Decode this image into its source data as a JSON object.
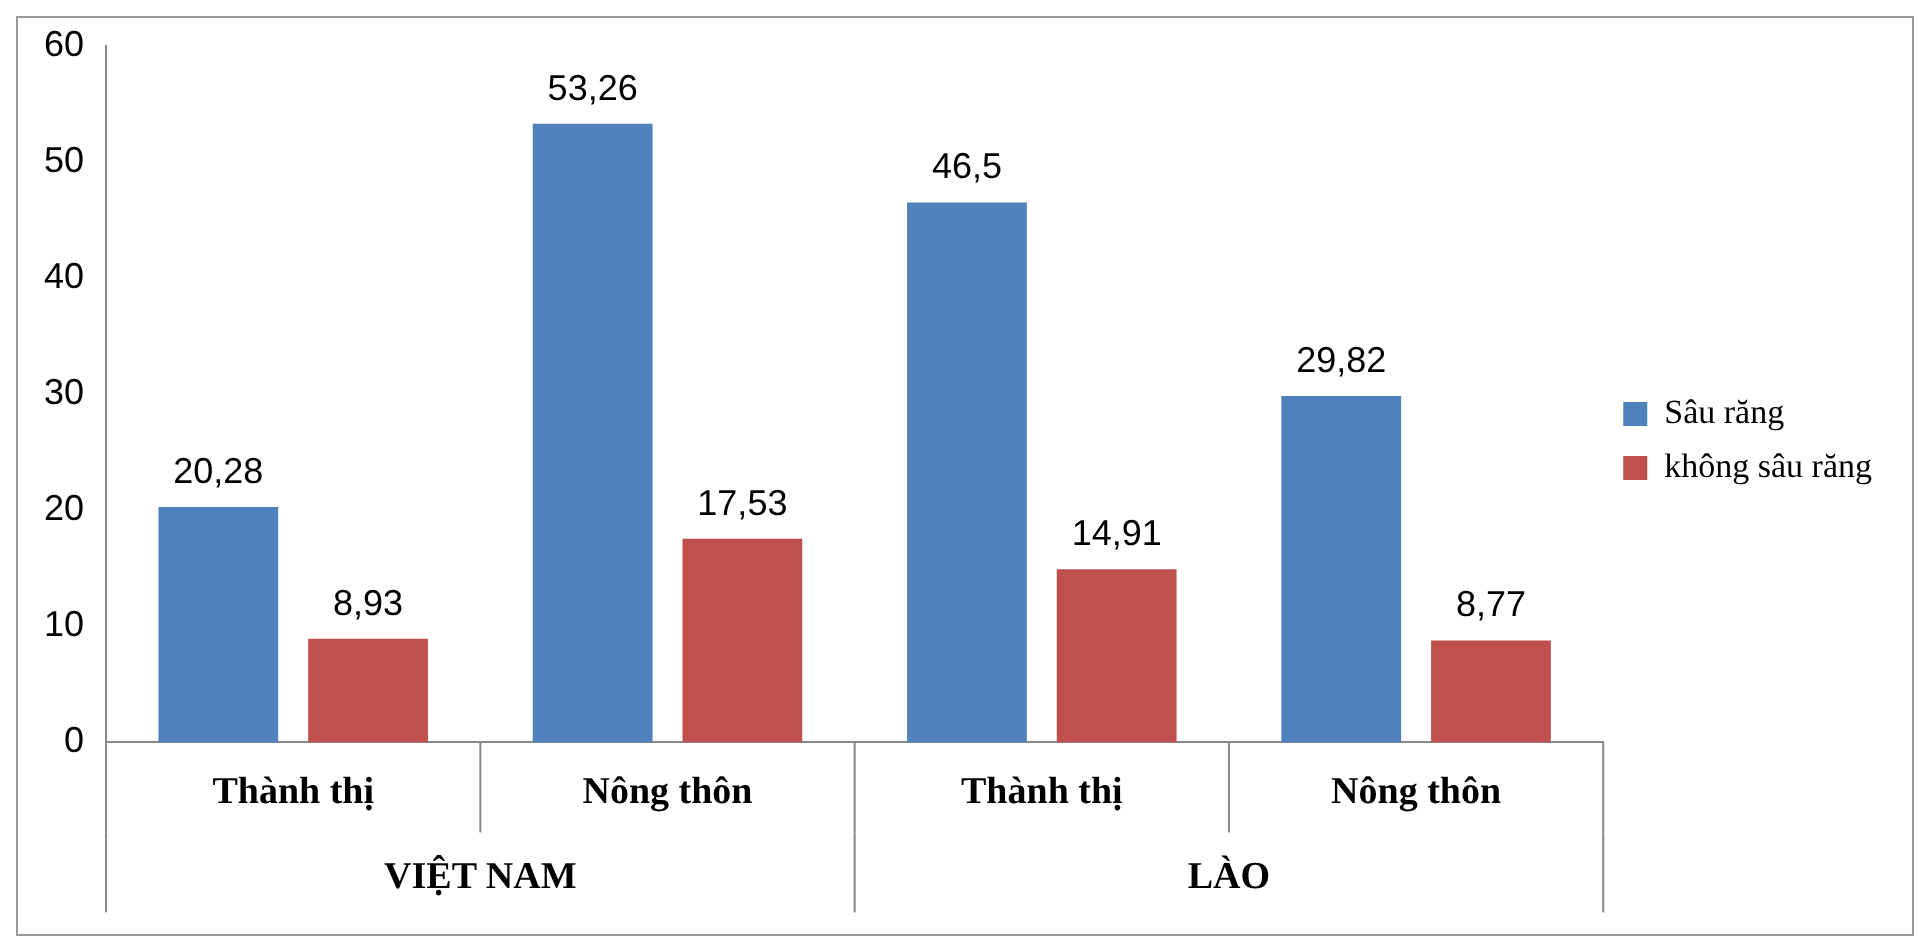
{
  "chart_data": {
    "type": "bar",
    "categories": [
      "Thành thị",
      "Nông thôn",
      "Thành thị",
      "Nông thôn"
    ],
    "series": [
      {
        "name": "Sâu răng",
        "color": "#4f81bd",
        "values": [
          20.28,
          53.26,
          46.5,
          29.82
        ],
        "value_labels": [
          "20,28",
          "53,26",
          "46,5",
          "29,82"
        ]
      },
      {
        "name": "không sâu răng",
        "color": "#c0504d",
        "values": [
          8.93,
          17.53,
          14.91,
          8.77
        ],
        "value_labels": [
          "8,93",
          "17,53",
          "14,91",
          "8,77"
        ]
      }
    ],
    "ylim": [
      0,
      60
    ],
    "yticks": [
      0,
      10,
      20,
      30,
      40,
      50,
      60
    ],
    "grid": false,
    "legend": "right",
    "annotations": [
      "VIỆT NAM",
      "LÀO"
    ]
  }
}
